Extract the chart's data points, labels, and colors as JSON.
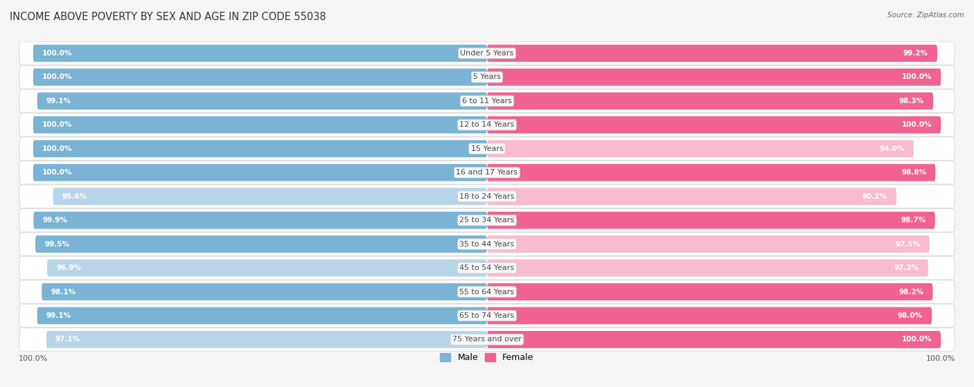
{
  "title": "INCOME ABOVE POVERTY BY SEX AND AGE IN ZIP CODE 55038",
  "source": "Source: ZipAtlas.com",
  "categories": [
    "Under 5 Years",
    "5 Years",
    "6 to 11 Years",
    "12 to 14 Years",
    "15 Years",
    "16 and 17 Years",
    "18 to 24 Years",
    "25 to 34 Years",
    "35 to 44 Years",
    "45 to 54 Years",
    "55 to 64 Years",
    "65 to 74 Years",
    "75 Years and over"
  ],
  "male_values": [
    100.0,
    100.0,
    99.1,
    100.0,
    100.0,
    100.0,
    95.6,
    99.9,
    99.5,
    96.9,
    98.1,
    99.1,
    97.1
  ],
  "female_values": [
    99.2,
    100.0,
    98.3,
    100.0,
    94.0,
    98.8,
    90.2,
    98.7,
    97.5,
    97.2,
    98.2,
    98.0,
    100.0
  ],
  "male_color": "#7ab3d4",
  "male_color_light": "#b8d5e8",
  "female_color": "#f06292",
  "female_color_light": "#f8bbd0",
  "row_bg_color": "#efefef",
  "row_border_color": "#dddddd",
  "male_label": "Male",
  "female_label": "Female",
  "background_color": "#f5f5f5",
  "title_fontsize": 10.5,
  "label_fontsize": 8,
  "value_fontsize": 7.5,
  "bar_height": 0.72,
  "category_label_color": "#444444",
  "bottom_tick_labels": [
    "100.0%",
    "100.0%"
  ]
}
